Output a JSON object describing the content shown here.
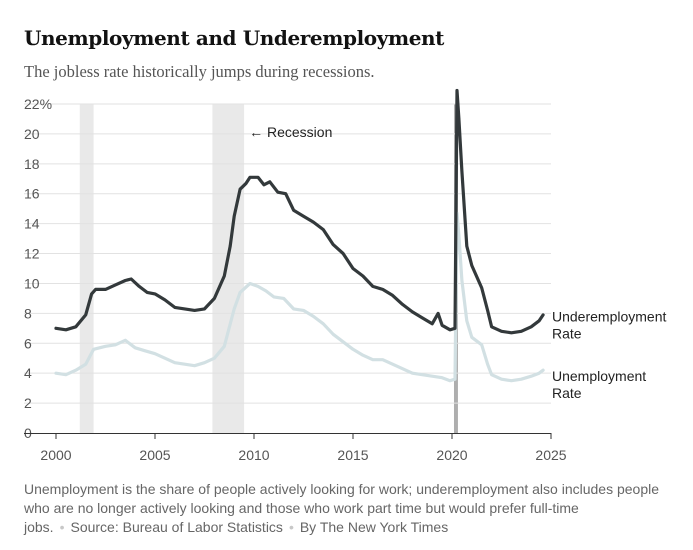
{
  "header": {
    "title": "Unemployment and Underemployment",
    "subtitle": "The jobless rate historically jumps during recessions."
  },
  "footer": {
    "note": "Unemployment is the share of people actively looking for work; underemployment also includes people who are no longer actively looking and those who work part time but would prefer full-time jobs.",
    "source": "Source: Bureau of Labor Statistics",
    "credit": "By The New York Times"
  },
  "colors": {
    "underemployment": "#33393b",
    "unemployment": "#d2e0e3",
    "recession_band": "#e9e9e9",
    "covid_spike": "#aeaeae",
    "gridline": "#e2e2e2",
    "axis": "#333333"
  },
  "chart_data": {
    "type": "line",
    "x_label": "",
    "y_label": "",
    "x_range": [
      2000,
      2025
    ],
    "y_range": [
      0,
      22
    ],
    "x_ticks": [
      "2000",
      "2005",
      "2010",
      "2015",
      "2020",
      "2025"
    ],
    "y_ticks": [
      "0",
      "2",
      "4",
      "6",
      "8",
      "10",
      "12",
      "14",
      "16",
      "18",
      "20",
      "22%"
    ],
    "grid": true,
    "recession_label": "← Recession",
    "recessions": [
      {
        "start": 2001.2,
        "end": 2001.9
      },
      {
        "start": 2007.9,
        "end": 2009.5
      },
      {
        "start": 2020.1,
        "end": 2020.3
      }
    ],
    "series": [
      {
        "name": "Underemployment Rate",
        "label_lines": [
          "Underemployment",
          "Rate"
        ],
        "points": [
          [
            2000.0,
            7.0
          ],
          [
            2000.5,
            6.9
          ],
          [
            2001.0,
            7.1
          ],
          [
            2001.5,
            7.9
          ],
          [
            2001.8,
            9.3
          ],
          [
            2002.0,
            9.6
          ],
          [
            2002.5,
            9.6
          ],
          [
            2003.0,
            9.9
          ],
          [
            2003.5,
            10.2
          ],
          [
            2003.8,
            10.3
          ],
          [
            2004.2,
            9.8
          ],
          [
            2004.6,
            9.4
          ],
          [
            2005.0,
            9.3
          ],
          [
            2005.5,
            8.9
          ],
          [
            2006.0,
            8.4
          ],
          [
            2006.5,
            8.3
          ],
          [
            2007.0,
            8.2
          ],
          [
            2007.5,
            8.3
          ],
          [
            2008.0,
            9.0
          ],
          [
            2008.5,
            10.5
          ],
          [
            2008.8,
            12.5
          ],
          [
            2009.0,
            14.5
          ],
          [
            2009.3,
            16.3
          ],
          [
            2009.6,
            16.7
          ],
          [
            2009.8,
            17.1
          ],
          [
            2010.2,
            17.1
          ],
          [
            2010.5,
            16.6
          ],
          [
            2010.8,
            16.8
          ],
          [
            2011.2,
            16.1
          ],
          [
            2011.6,
            16.0
          ],
          [
            2012.0,
            14.9
          ],
          [
            2012.5,
            14.5
          ],
          [
            2013.0,
            14.1
          ],
          [
            2013.5,
            13.6
          ],
          [
            2014.0,
            12.6
          ],
          [
            2014.5,
            12.0
          ],
          [
            2015.0,
            11.0
          ],
          [
            2015.5,
            10.5
          ],
          [
            2016.0,
            9.8
          ],
          [
            2016.5,
            9.6
          ],
          [
            2017.0,
            9.2
          ],
          [
            2017.5,
            8.6
          ],
          [
            2018.0,
            8.1
          ],
          [
            2018.5,
            7.7
          ],
          [
            2019.0,
            7.3
          ],
          [
            2019.3,
            8.0
          ],
          [
            2019.5,
            7.2
          ],
          [
            2019.9,
            6.9
          ],
          [
            2020.15,
            7.0
          ],
          [
            2020.25,
            22.9
          ],
          [
            2020.35,
            21.0
          ],
          [
            2020.5,
            17.5
          ],
          [
            2020.75,
            12.5
          ],
          [
            2021.0,
            11.2
          ],
          [
            2021.5,
            9.7
          ],
          [
            2021.8,
            8.2
          ],
          [
            2022.0,
            7.1
          ],
          [
            2022.5,
            6.8
          ],
          [
            2023.0,
            6.7
          ],
          [
            2023.5,
            6.8
          ],
          [
            2024.0,
            7.1
          ],
          [
            2024.4,
            7.5
          ],
          [
            2024.6,
            7.9
          ]
        ]
      },
      {
        "name": "Unemployment Rate",
        "label_lines": [
          "Unemployment",
          "Rate"
        ],
        "points": [
          [
            2000.0,
            4.0
          ],
          [
            2000.5,
            3.9
          ],
          [
            2001.0,
            4.2
          ],
          [
            2001.5,
            4.6
          ],
          [
            2001.9,
            5.6
          ],
          [
            2002.5,
            5.8
          ],
          [
            2003.0,
            5.9
          ],
          [
            2003.5,
            6.2
          ],
          [
            2004.0,
            5.7
          ],
          [
            2004.5,
            5.5
          ],
          [
            2005.0,
            5.3
          ],
          [
            2005.5,
            5.0
          ],
          [
            2006.0,
            4.7
          ],
          [
            2006.5,
            4.6
          ],
          [
            2007.0,
            4.5
          ],
          [
            2007.5,
            4.7
          ],
          [
            2008.0,
            5.0
          ],
          [
            2008.5,
            5.8
          ],
          [
            2009.0,
            8.3
          ],
          [
            2009.3,
            9.4
          ],
          [
            2009.8,
            10.0
          ],
          [
            2010.2,
            9.8
          ],
          [
            2010.6,
            9.5
          ],
          [
            2011.0,
            9.1
          ],
          [
            2011.5,
            9.0
          ],
          [
            2012.0,
            8.3
          ],
          [
            2012.5,
            8.2
          ],
          [
            2013.0,
            7.8
          ],
          [
            2013.5,
            7.3
          ],
          [
            2014.0,
            6.6
          ],
          [
            2014.5,
            6.1
          ],
          [
            2015.0,
            5.6
          ],
          [
            2015.5,
            5.2
          ],
          [
            2016.0,
            4.9
          ],
          [
            2016.5,
            4.9
          ],
          [
            2017.0,
            4.6
          ],
          [
            2017.5,
            4.3
          ],
          [
            2018.0,
            4.0
          ],
          [
            2018.5,
            3.9
          ],
          [
            2019.0,
            3.8
          ],
          [
            2019.5,
            3.7
          ],
          [
            2019.9,
            3.5
          ],
          [
            2020.15,
            3.6
          ],
          [
            2020.25,
            14.7
          ],
          [
            2020.35,
            13.2
          ],
          [
            2020.5,
            10.2
          ],
          [
            2020.75,
            7.5
          ],
          [
            2021.0,
            6.4
          ],
          [
            2021.5,
            5.9
          ],
          [
            2021.8,
            4.6
          ],
          [
            2022.0,
            3.9
          ],
          [
            2022.5,
            3.6
          ],
          [
            2023.0,
            3.5
          ],
          [
            2023.5,
            3.6
          ],
          [
            2024.0,
            3.8
          ],
          [
            2024.4,
            4.0
          ],
          [
            2024.6,
            4.2
          ]
        ]
      }
    ]
  }
}
